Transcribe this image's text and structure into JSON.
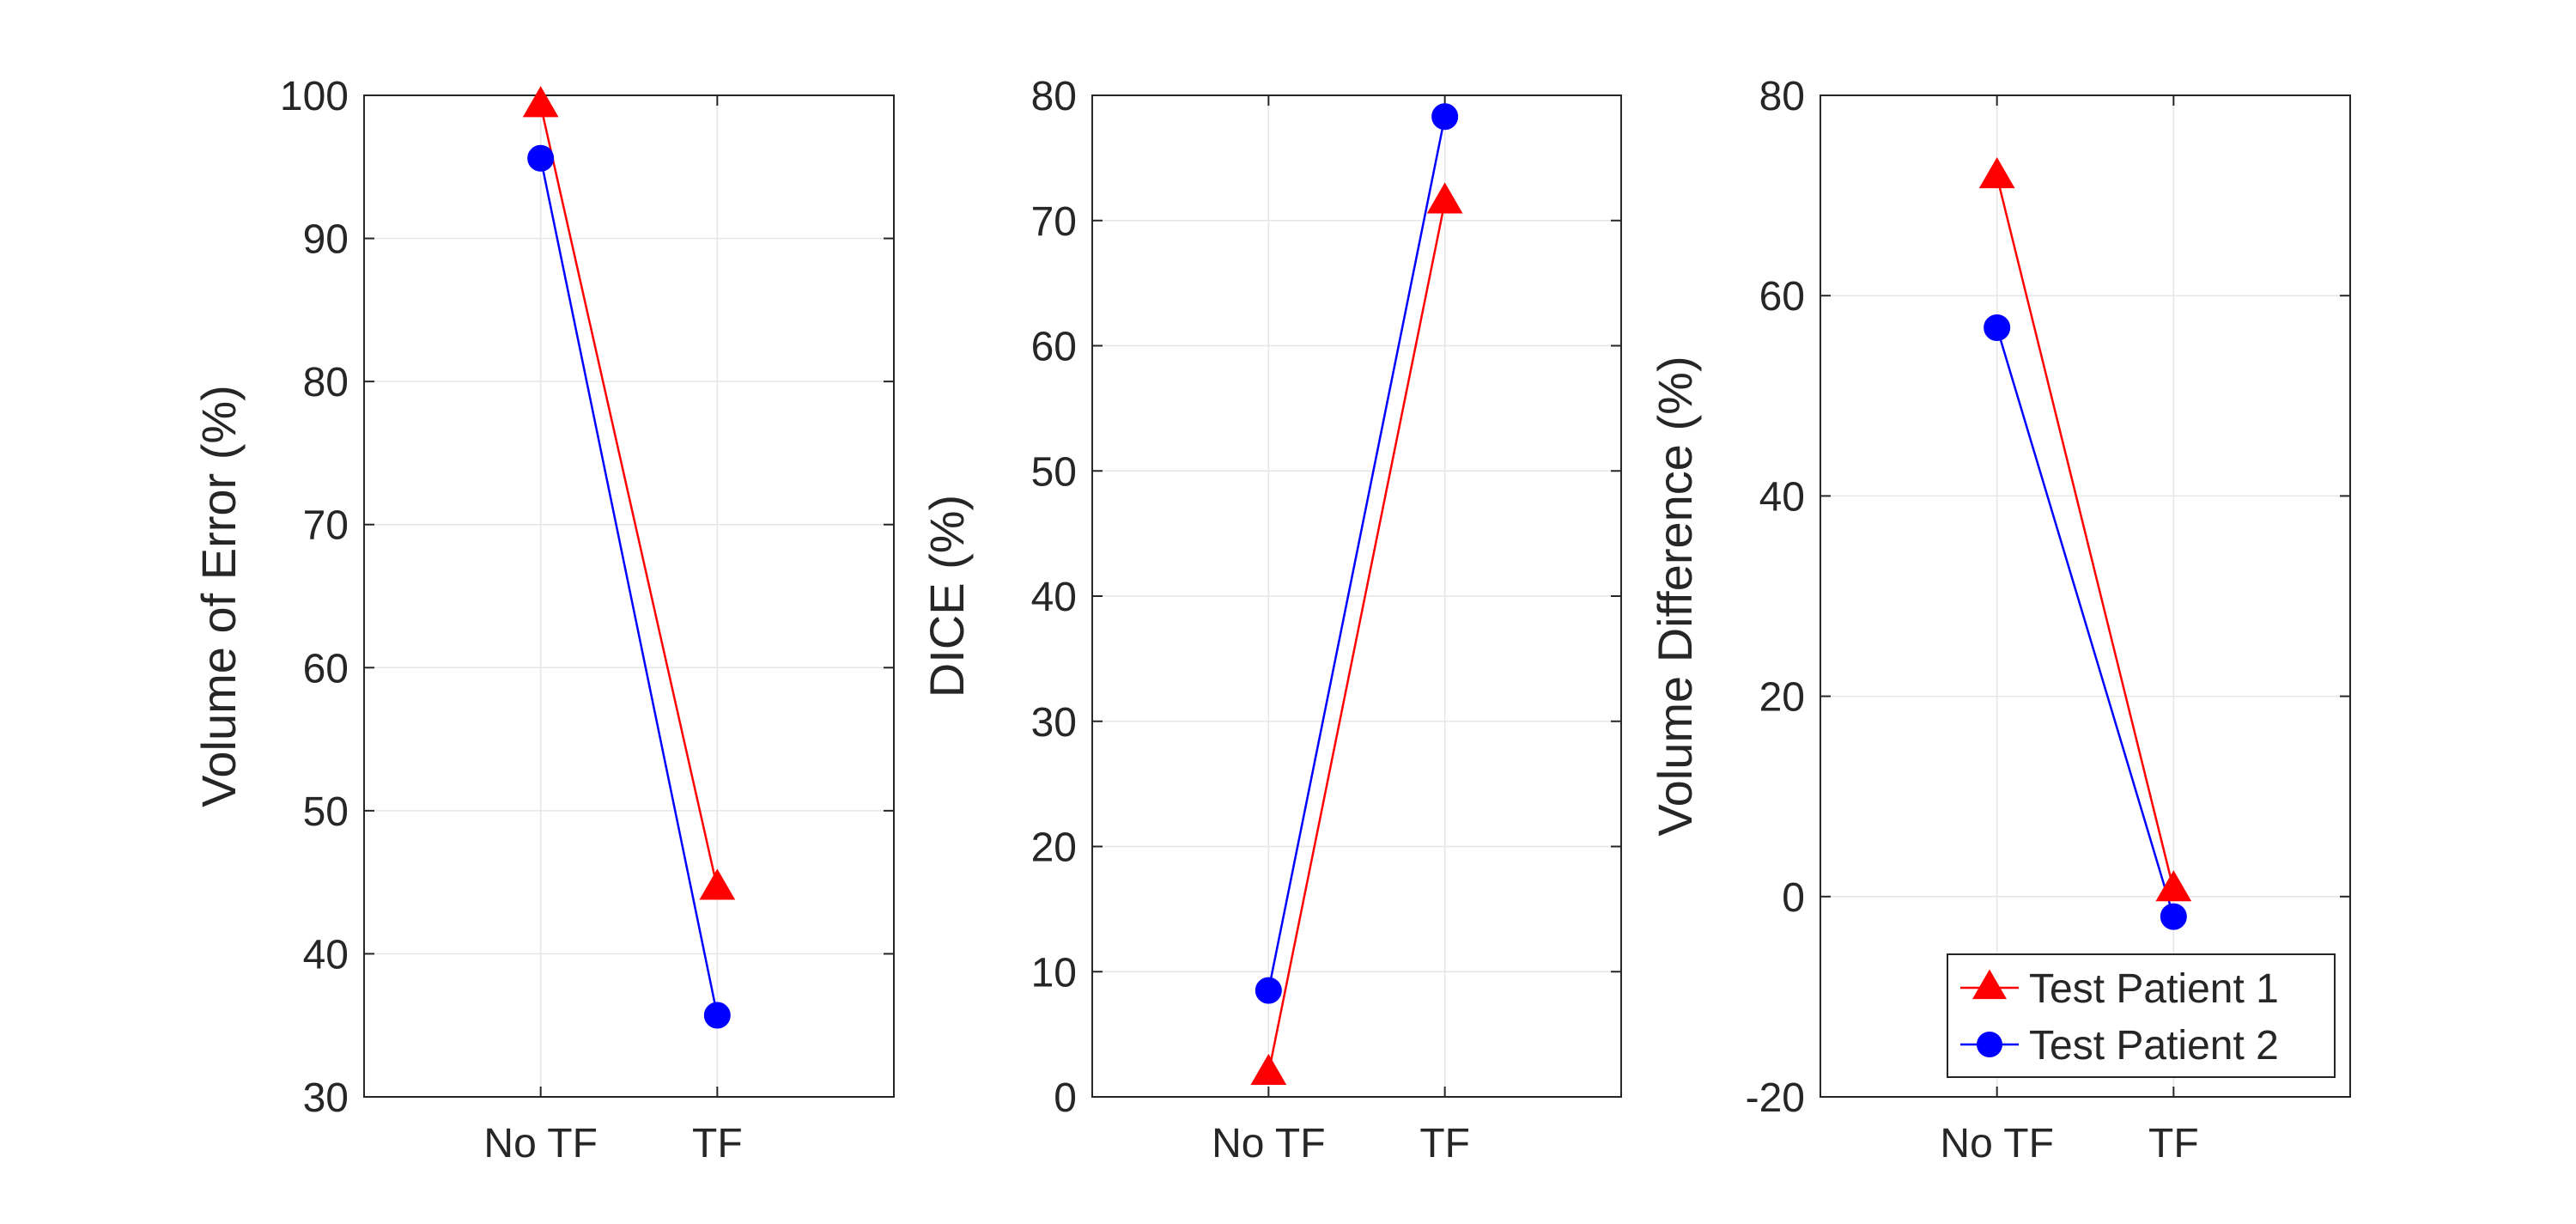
{
  "chart_data": [
    {
      "type": "line",
      "categories": [
        "No TF",
        "TF"
      ],
      "ylabel": "Volume of Error (%)",
      "xlabel": "",
      "ylim": [
        30,
        100
      ],
      "yticks": [
        30,
        40,
        50,
        60,
        70,
        80,
        90,
        100
      ],
      "grid": true,
      "series": [
        {
          "name": "Test Patient 1",
          "marker": "triangle",
          "color": "#ff0000",
          "values": [
            99.3,
            44.6
          ]
        },
        {
          "name": "Test Patient 2",
          "marker": "circle",
          "color": "#0000ff",
          "values": [
            95.6,
            35.7
          ]
        }
      ]
    },
    {
      "type": "line",
      "categories": [
        "No TF",
        "TF"
      ],
      "ylabel": "DICE (%)",
      "xlabel": "",
      "ylim": [
        0,
        80
      ],
      "yticks": [
        0,
        10,
        20,
        30,
        40,
        50,
        60,
        70,
        80
      ],
      "grid": true,
      "series": [
        {
          "name": "Test Patient 1",
          "marker": "triangle",
          "color": "#ff0000",
          "values": [
            1.9,
            71.5
          ]
        },
        {
          "name": "Test Patient 2",
          "marker": "circle",
          "color": "#0000ff",
          "values": [
            8.5,
            78.3
          ]
        }
      ]
    },
    {
      "type": "line",
      "categories": [
        "No TF",
        "TF"
      ],
      "ylabel": "Volume Difference (%)",
      "xlabel": "",
      "ylim": [
        -20,
        80
      ],
      "yticks": [
        -20,
        0,
        20,
        40,
        60,
        80
      ],
      "grid": true,
      "legend": {
        "placement": "bottom-right",
        "entries": [
          "Test Patient 1",
          "Test Patient 2"
        ]
      },
      "series": [
        {
          "name": "Test Patient 1",
          "marker": "triangle",
          "color": "#ff0000",
          "values": [
            71.9,
            0.7
          ]
        },
        {
          "name": "Test Patient 2",
          "marker": "circle",
          "color": "#0000ff",
          "values": [
            56.8,
            -2.0
          ]
        }
      ]
    }
  ]
}
